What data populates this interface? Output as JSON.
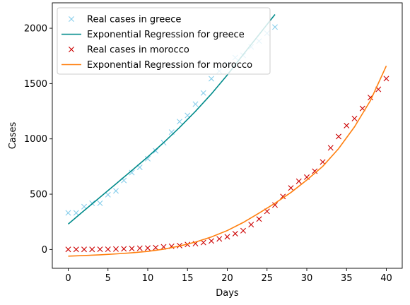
{
  "chart_data": {
    "type": "scatter",
    "xlabel": "Days",
    "ylabel": "Cases",
    "xlim": [
      -2,
      42
    ],
    "ylim": [
      -170,
      2230
    ],
    "xticks": [
      0,
      5,
      10,
      15,
      20,
      25,
      30,
      35,
      40
    ],
    "yticks": [
      0,
      500,
      1000,
      1500,
      2000
    ],
    "grid": false,
    "legend_position": "top-left",
    "series": [
      {
        "name": "Real cases in greece",
        "kind": "scatter",
        "marker": "x",
        "color": "#87ceeb",
        "x": [
          0,
          1,
          2,
          3,
          4,
          5,
          6,
          7,
          8,
          9,
          10,
          11,
          12,
          13,
          14,
          15,
          16,
          17,
          18,
          19,
          20,
          21,
          22,
          23,
          24,
          25,
          26
        ],
        "y": [
          331,
          331,
          387,
          418,
          418,
          495,
          530,
          624,
          695,
          743,
          821,
          892,
          966,
          1061,
          1156,
          1212,
          1314,
          1415,
          1544,
          1613,
          1673,
          1735,
          1755,
          1832,
          1884,
          1955,
          2011
        ]
      },
      {
        "name": "Exponential Regression for greece",
        "kind": "line",
        "color": "#008b8b",
        "x": [
          0,
          2,
          4,
          6,
          8,
          10,
          12,
          14,
          16,
          18,
          20,
          22,
          24,
          26
        ],
        "y": [
          230,
          352,
          472,
          593,
          714,
          837,
          966,
          1103,
          1249,
          1406,
          1577,
          1762,
          1943,
          2125
        ]
      },
      {
        "name": "Real cases in morocco",
        "kind": "scatter",
        "marker": "x",
        "color": "#cc0000",
        "x": [
          0,
          1,
          2,
          3,
          4,
          5,
          6,
          7,
          8,
          9,
          10,
          11,
          12,
          13,
          14,
          15,
          16,
          17,
          18,
          19,
          20,
          21,
          22,
          23,
          24,
          25,
          26,
          27,
          28,
          29,
          30,
          31,
          32,
          33,
          34,
          35,
          36,
          37,
          38,
          39,
          40
        ],
        "y": [
          1,
          1,
          1,
          1,
          2,
          2,
          4,
          6,
          8,
          11,
          13,
          17,
          24,
          29,
          35,
          45,
          53,
          63,
          77,
          96,
          115,
          143,
          170,
          225,
          275,
          345,
          402,
          479,
          556,
          617,
          654,
          708,
          791,
          919,
          1021,
          1120,
          1184,
          1275,
          1374,
          1448,
          1545
        ]
      },
      {
        "name": "Exponential Regression for morocco",
        "kind": "line",
        "color": "#ff7f0e",
        "x": [
          0,
          2,
          4,
          6,
          8,
          10,
          12,
          14,
          16,
          18,
          20,
          22,
          24,
          26,
          28,
          30,
          32,
          34,
          36,
          38,
          40
        ],
        "y": [
          -60,
          -55,
          -48,
          -40,
          -30,
          -17,
          3,
          31,
          67,
          113,
          171,
          244,
          329,
          418,
          515,
          628,
          751,
          912,
          1109,
          1346,
          1660
        ]
      }
    ]
  }
}
